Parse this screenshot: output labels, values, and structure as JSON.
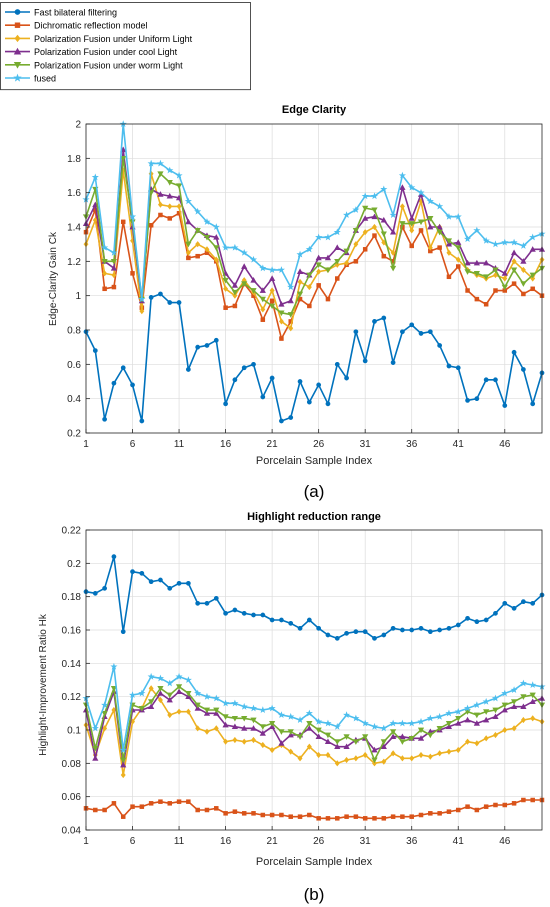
{
  "legend": {
    "placement": "top-left",
    "entries": [
      {
        "label": "Fast bilateral filtering",
        "color": "#0072BD",
        "marker": "circle"
      },
      {
        "label": "Dichromatic reflection model",
        "color": "#D95319",
        "marker": "square"
      },
      {
        "label": "Polarization Fusion under Uniform Light",
        "color": "#EDB120",
        "marker": "diamond"
      },
      {
        "label": "Polarization Fusion under cool Light",
        "color": "#7E2F8E",
        "marker": "triangle-up"
      },
      {
        "label": "Polarization Fusion under worm Light",
        "color": "#77AC30",
        "marker": "triangle-down"
      },
      {
        "label": "fused",
        "color": "#4DBEEE",
        "marker": "star"
      }
    ]
  },
  "chart_data": [
    {
      "type": "line",
      "panel_label": "(a)",
      "title": "Edge Clarity",
      "xlabel": "Porcelain Sample Index",
      "ylabel": "Edge-Clarity Gain Ck",
      "xlim": [
        1,
        50
      ],
      "ylim": [
        0.2,
        2
      ],
      "xticks": [
        1,
        6,
        11,
        16,
        21,
        26,
        31,
        36,
        41,
        46
      ],
      "yticks": [
        0.2,
        0.4,
        0.6,
        0.8,
        1,
        1.2,
        1.4,
        1.6,
        1.8,
        2
      ],
      "ytick_labels": [
        "0.2",
        "0.4",
        "0.6",
        "0.8",
        "1",
        "1.2",
        "1.4",
        "1.6",
        "1.8",
        "2"
      ],
      "grid": true,
      "series": [
        {
          "name": "Fast bilateral filtering",
          "color": "#0072BD",
          "marker": "circle",
          "values": [
            0.79,
            0.68,
            0.28,
            0.49,
            0.58,
            0.48,
            0.27,
            0.99,
            1.01,
            0.96,
            0.96,
            0.57,
            0.7,
            0.71,
            0.74,
            0.37,
            0.51,
            0.58,
            0.6,
            0.41,
            0.52,
            0.27,
            0.29,
            0.5,
            0.38,
            0.48,
            0.37,
            0.6,
            0.52,
            0.79,
            0.62,
            0.85,
            0.87,
            0.61,
            0.79,
            0.83,
            0.78,
            0.79,
            0.71,
            0.59,
            0.58,
            0.39,
            0.4,
            0.51,
            0.51,
            0.36,
            0.67,
            0.57,
            0.37,
            0.55
          ]
        },
        {
          "name": "Dichromatic reflection model",
          "color": "#D95319",
          "marker": "square",
          "values": [
            1.37,
            1.5,
            1.04,
            1.05,
            1.43,
            1.13,
            0.93,
            1.41,
            1.47,
            1.45,
            1.48,
            1.22,
            1.23,
            1.25,
            1.2,
            0.93,
            0.94,
            1.07,
            1.0,
            0.86,
            0.97,
            0.75,
            0.85,
            0.98,
            0.94,
            1.06,
            0.98,
            1.1,
            1.18,
            1.2,
            1.27,
            1.35,
            1.23,
            1.2,
            1.4,
            1.29,
            1.38,
            1.26,
            1.28,
            1.11,
            1.17,
            1.03,
            0.98,
            0.95,
            1.03,
            1.03,
            1.07,
            1.01,
            1.04,
            1.0
          ]
        },
        {
          "name": "Polarization Fusion under Uniform Light",
          "color": "#EDB120",
          "marker": "diamond",
          "values": [
            1.3,
            1.44,
            1.13,
            1.12,
            1.73,
            1.32,
            0.91,
            1.71,
            1.53,
            1.52,
            1.52,
            1.25,
            1.3,
            1.27,
            1.21,
            1.04,
            1.0,
            1.09,
            1.02,
            0.92,
            1.03,
            0.85,
            0.81,
            1.08,
            1.05,
            1.14,
            1.15,
            1.18,
            1.19,
            1.3,
            1.37,
            1.4,
            1.31,
            1.25,
            1.52,
            1.38,
            1.55,
            1.28,
            1.4,
            1.25,
            1.21,
            1.15,
            1.12,
            1.1,
            1.12,
            1.1,
            1.2,
            1.15,
            1.1,
            1.21
          ]
        },
        {
          "name": "Polarization Fusion under cool Light",
          "color": "#7E2F8E",
          "marker": "triangle-up",
          "values": [
            1.42,
            1.53,
            1.2,
            1.16,
            1.85,
            1.4,
            0.97,
            1.62,
            1.59,
            1.58,
            1.57,
            1.43,
            1.38,
            1.35,
            1.34,
            1.13,
            1.06,
            1.17,
            1.09,
            1.03,
            1.1,
            0.95,
            0.97,
            1.14,
            1.12,
            1.22,
            1.22,
            1.28,
            1.25,
            1.38,
            1.45,
            1.46,
            1.44,
            1.37,
            1.63,
            1.45,
            1.59,
            1.4,
            1.4,
            1.3,
            1.31,
            1.19,
            1.19,
            1.19,
            1.16,
            1.13,
            1.25,
            1.2,
            1.27,
            1.27
          ]
        },
        {
          "name": "Polarization Fusion under worm Light",
          "color": "#77AC30",
          "marker": "triangle-down",
          "values": [
            1.46,
            1.62,
            1.2,
            1.2,
            1.8,
            1.43,
            0.98,
            1.6,
            1.71,
            1.66,
            1.64,
            1.3,
            1.38,
            1.34,
            1.28,
            1.09,
            1.02,
            1.07,
            1.03,
            0.98,
            0.94,
            0.9,
            0.89,
            1.01,
            1.12,
            1.18,
            1.15,
            1.2,
            1.26,
            1.38,
            1.51,
            1.5,
            1.36,
            1.16,
            1.42,
            1.42,
            1.43,
            1.45,
            1.37,
            1.32,
            1.28,
            1.14,
            1.13,
            1.11,
            1.15,
            1.05,
            1.15,
            1.07,
            1.12,
            1.16
          ]
        },
        {
          "name": "fused",
          "color": "#4DBEEE",
          "marker": "star",
          "values": [
            1.56,
            1.69,
            1.28,
            1.25,
            2.0,
            1.46,
            0.98,
            1.77,
            1.77,
            1.73,
            1.7,
            1.55,
            1.49,
            1.43,
            1.4,
            1.28,
            1.28,
            1.25,
            1.21,
            1.16,
            1.15,
            1.15,
            1.05,
            1.24,
            1.27,
            1.34,
            1.34,
            1.37,
            1.47,
            1.5,
            1.58,
            1.58,
            1.62,
            1.47,
            1.7,
            1.63,
            1.6,
            1.55,
            1.52,
            1.46,
            1.46,
            1.33,
            1.38,
            1.32,
            1.3,
            1.31,
            1.31,
            1.29,
            1.34,
            1.36
          ]
        }
      ]
    },
    {
      "type": "line",
      "panel_label": "(b)",
      "title": "Highlight reduction range",
      "xlabel": "Porcelain Sample Index",
      "ylabel": "Highlight-Improvement Ratio Hk",
      "xlim": [
        1,
        50
      ],
      "ylim": [
        0.04,
        0.22
      ],
      "xticks": [
        1,
        6,
        11,
        16,
        21,
        26,
        31,
        36,
        41,
        46
      ],
      "yticks": [
        0.04,
        0.06,
        0.08,
        0.1,
        0.12,
        0.14,
        0.16,
        0.18,
        0.2,
        0.22
      ],
      "ytick_labels": [
        "0.04",
        "0.06",
        "0.08",
        "0.1",
        "0.12",
        "0.14",
        "0.16",
        "0.18",
        "0.2",
        "0.22"
      ],
      "grid": true,
      "series": [
        {
          "name": "Fast bilateral filtering",
          "color": "#0072BD",
          "marker": "circle",
          "values": [
            0.183,
            0.182,
            0.185,
            0.204,
            0.159,
            0.195,
            0.194,
            0.189,
            0.19,
            0.185,
            0.188,
            0.188,
            0.176,
            0.176,
            0.179,
            0.17,
            0.172,
            0.17,
            0.169,
            0.169,
            0.166,
            0.166,
            0.164,
            0.161,
            0.166,
            0.161,
            0.157,
            0.155,
            0.158,
            0.159,
            0.159,
            0.155,
            0.157,
            0.161,
            0.16,
            0.16,
            0.161,
            0.159,
            0.16,
            0.161,
            0.163,
            0.167,
            0.165,
            0.166,
            0.17,
            0.176,
            0.173,
            0.177,
            0.176,
            0.181
          ]
        },
        {
          "name": "Dichromatic reflection model",
          "color": "#D95319",
          "marker": "square",
          "values": [
            0.053,
            0.052,
            0.052,
            0.056,
            0.048,
            0.054,
            0.054,
            0.056,
            0.057,
            0.056,
            0.057,
            0.057,
            0.052,
            0.052,
            0.053,
            0.05,
            0.051,
            0.05,
            0.05,
            0.049,
            0.049,
            0.049,
            0.048,
            0.048,
            0.049,
            0.047,
            0.047,
            0.047,
            0.048,
            0.048,
            0.047,
            0.047,
            0.047,
            0.048,
            0.048,
            0.048,
            0.049,
            0.05,
            0.05,
            0.051,
            0.052,
            0.054,
            0.052,
            0.054,
            0.055,
            0.055,
            0.056,
            0.058,
            0.058,
            0.058
          ]
        },
        {
          "name": "Polarization Fusion under Uniform Light",
          "color": "#EDB120",
          "marker": "diamond",
          "values": [
            0.103,
            0.085,
            0.101,
            0.112,
            0.073,
            0.105,
            0.113,
            0.125,
            0.118,
            0.109,
            0.111,
            0.111,
            0.101,
            0.099,
            0.101,
            0.093,
            0.094,
            0.093,
            0.094,
            0.091,
            0.088,
            0.091,
            0.087,
            0.083,
            0.09,
            0.085,
            0.085,
            0.08,
            0.082,
            0.083,
            0.085,
            0.08,
            0.081,
            0.086,
            0.083,
            0.083,
            0.085,
            0.084,
            0.086,
            0.087,
            0.088,
            0.093,
            0.092,
            0.095,
            0.097,
            0.1,
            0.101,
            0.106,
            0.107,
            0.105
          ]
        },
        {
          "name": "Polarization Fusion under cool Light",
          "color": "#7E2F8E",
          "marker": "triangle-up",
          "values": [
            0.112,
            0.083,
            0.108,
            0.123,
            0.079,
            0.112,
            0.112,
            0.114,
            0.122,
            0.118,
            0.123,
            0.12,
            0.113,
            0.11,
            0.11,
            0.103,
            0.102,
            0.101,
            0.101,
            0.098,
            0.102,
            0.092,
            0.097,
            0.097,
            0.101,
            0.096,
            0.093,
            0.09,
            0.09,
            0.094,
            0.095,
            0.088,
            0.09,
            0.096,
            0.096,
            0.095,
            0.095,
            0.099,
            0.1,
            0.102,
            0.104,
            0.106,
            0.104,
            0.106,
            0.108,
            0.112,
            0.114,
            0.114,
            0.117,
            0.119
          ]
        },
        {
          "name": "Polarization Fusion under worm Light",
          "color": "#77AC30",
          "marker": "triangle-down",
          "values": [
            0.115,
            0.089,
            0.11,
            0.125,
            0.082,
            0.115,
            0.113,
            0.117,
            0.125,
            0.121,
            0.126,
            0.122,
            0.115,
            0.112,
            0.112,
            0.108,
            0.107,
            0.107,
            0.106,
            0.102,
            0.104,
            0.099,
            0.099,
            0.096,
            0.104,
            0.1,
            0.097,
            0.093,
            0.096,
            0.093,
            0.096,
            0.082,
            0.093,
            0.099,
            0.093,
            0.095,
            0.1,
            0.097,
            0.101,
            0.104,
            0.107,
            0.111,
            0.109,
            0.111,
            0.112,
            0.115,
            0.117,
            0.12,
            0.121,
            0.115
          ]
        },
        {
          "name": "fused",
          "color": "#4DBEEE",
          "marker": "star",
          "values": [
            0.119,
            0.101,
            0.115,
            0.138,
            0.088,
            0.121,
            0.122,
            0.132,
            0.131,
            0.128,
            0.132,
            0.13,
            0.122,
            0.12,
            0.119,
            0.116,
            0.116,
            0.114,
            0.113,
            0.112,
            0.113,
            0.109,
            0.108,
            0.106,
            0.11,
            0.105,
            0.104,
            0.102,
            0.109,
            0.107,
            0.104,
            0.102,
            0.101,
            0.104,
            0.104,
            0.104,
            0.105,
            0.107,
            0.108,
            0.11,
            0.111,
            0.113,
            0.115,
            0.117,
            0.119,
            0.122,
            0.124,
            0.128,
            0.127,
            0.126
          ]
        }
      ]
    }
  ]
}
